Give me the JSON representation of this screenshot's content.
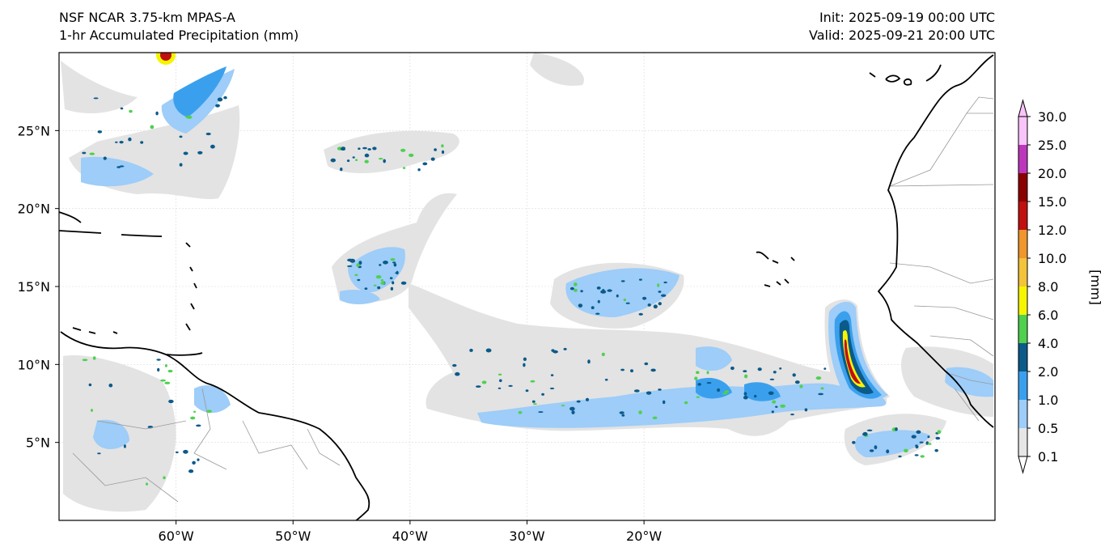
{
  "header": {
    "model_name": "NSF NCAR 3.75-km MPAS-A",
    "field_name": "1-hr Accumulated Precipitation (mm)",
    "init_time": "Init: 2025-09-19 00:00 UTC",
    "valid_time": "Valid: 2025-09-21 20:00 UTC"
  },
  "axes": {
    "lon_labels": [
      "60°W",
      "50°W",
      "40°W",
      "30°W",
      "20°W"
    ],
    "lon_values": [
      -60,
      -50,
      -40,
      -30,
      -20
    ],
    "lat_labels": [
      "25°N",
      "20°N",
      "15°N",
      "10°N",
      "5°N"
    ],
    "lat_values": [
      25,
      20,
      15,
      10,
      5
    ],
    "lon_range": [
      -70,
      10
    ],
    "lat_range": [
      0,
      30
    ]
  },
  "colorbar": {
    "unit_label": "[mm]",
    "tick_labels": [
      "0.1",
      "0.5",
      "1.0",
      "2.0",
      "4.0",
      "6.0",
      "8.0",
      "10.0",
      "12.0",
      "15.0",
      "20.0",
      "25.0",
      "30.0"
    ],
    "colors": [
      "#e6e6e6",
      "#9dcdf8",
      "#3aa0ee",
      "#0b5a8a",
      "#4fd04f",
      "#f5f500",
      "#f3c33a",
      "#f0962d",
      "#c01010",
      "#8b0000",
      "#bd37bd",
      "#f9c4f9"
    ]
  },
  "colors": {
    "background": "#ffffff",
    "coastline": "#000000",
    "border": "#999999",
    "grid": "#d9d9d9"
  }
}
